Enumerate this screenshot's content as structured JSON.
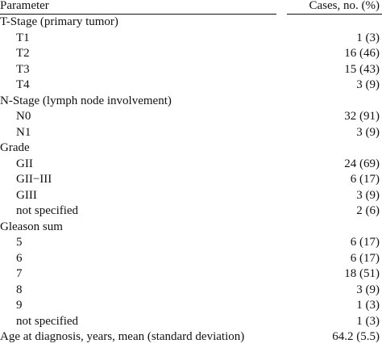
{
  "table": {
    "header": {
      "parameter": "Parameter",
      "cases": "Cases, no. (%)"
    },
    "rows": [
      {
        "label": "T-Stage (primary tumor)",
        "value": "",
        "type": "group"
      },
      {
        "label": "T1",
        "value": "1 (3)",
        "type": "item"
      },
      {
        "label": "T2",
        "value": "16 (46)",
        "type": "item"
      },
      {
        "label": "T3",
        "value": "15 (43)",
        "type": "item"
      },
      {
        "label": "T4",
        "value": "3 (9)",
        "type": "item"
      },
      {
        "label": "N-Stage (lymph node involvement)",
        "value": "",
        "type": "group"
      },
      {
        "label": "N0",
        "value": "32 (91)",
        "type": "item"
      },
      {
        "label": "N1",
        "value": "3 (9)",
        "type": "item"
      },
      {
        "label": "Grade",
        "value": "",
        "type": "group"
      },
      {
        "label": "GII",
        "value": "24 (69)",
        "type": "item"
      },
      {
        "label": "GII−III",
        "value": "6 (17)",
        "type": "item"
      },
      {
        "label": "GIII",
        "value": "3 (9)",
        "type": "item"
      },
      {
        "label": "not specified",
        "value": "2 (6)",
        "type": "item"
      },
      {
        "label": "Gleason sum",
        "value": "",
        "type": "group"
      },
      {
        "label": "5",
        "value": "6 (17)",
        "type": "item"
      },
      {
        "label": "6",
        "value": "6 (17)",
        "type": "item"
      },
      {
        "label": "7",
        "value": "18 (51)",
        "type": "item"
      },
      {
        "label": "8",
        "value": "3 (9)",
        "type": "item"
      },
      {
        "label": "9",
        "value": "1 (3)",
        "type": "item"
      },
      {
        "label": "not specified",
        "value": "1 (3)",
        "type": "item"
      },
      {
        "label": "Age at diagnosis, years, mean (standard deviation)",
        "value": "64.2 (5.5)",
        "type": "group"
      }
    ]
  }
}
